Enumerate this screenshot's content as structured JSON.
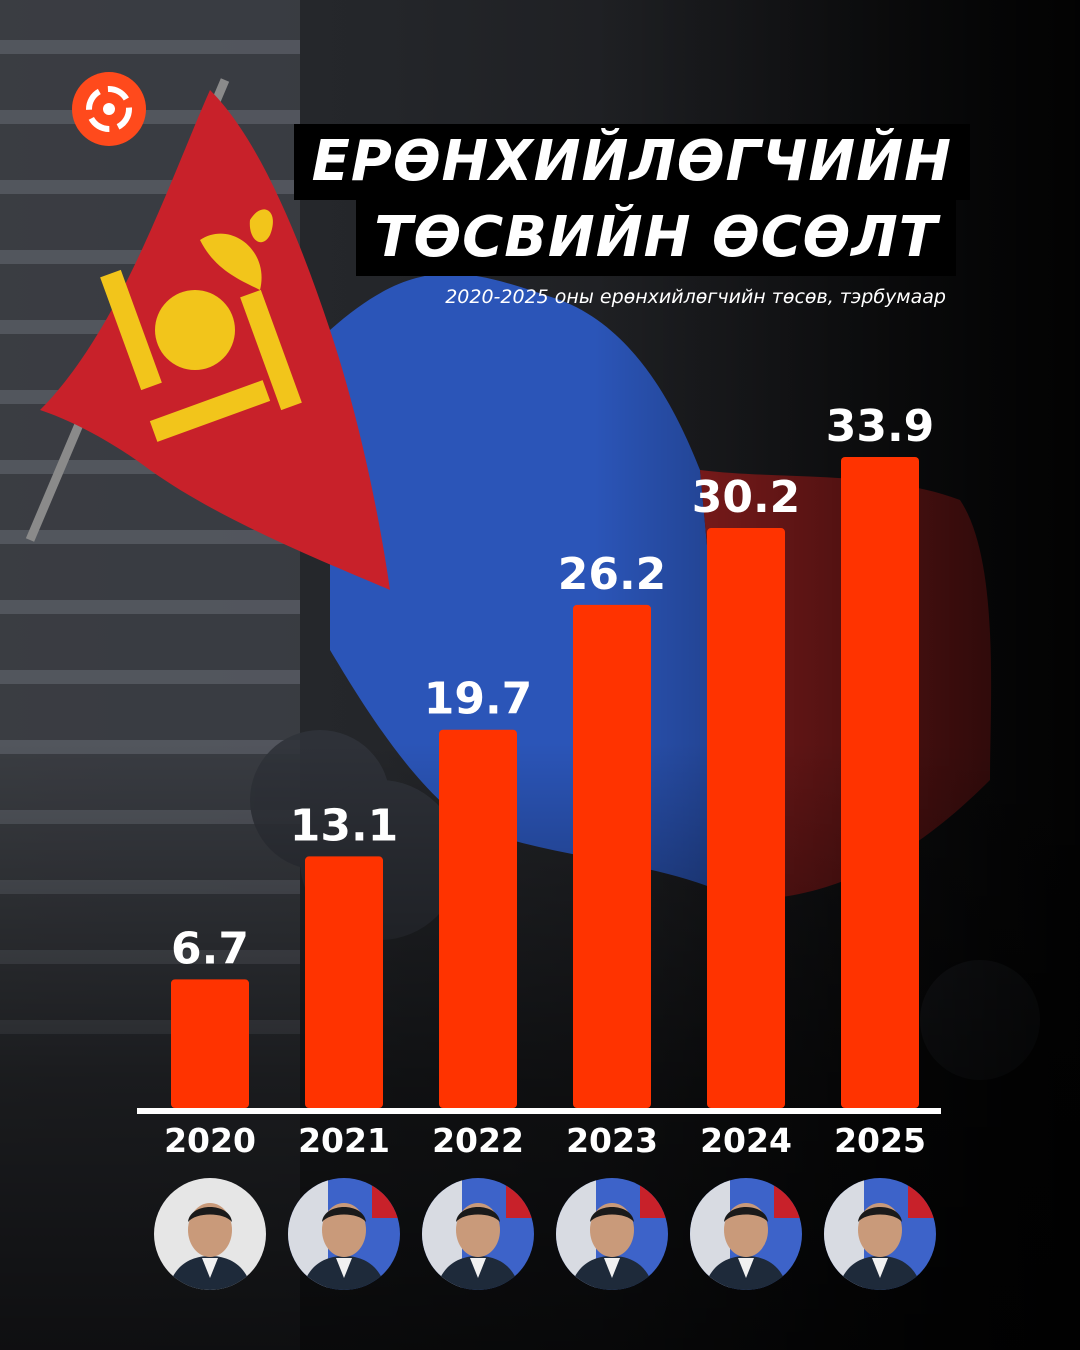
{
  "title": {
    "line1": "ЕРӨНХИЙЛӨГЧИЙН",
    "line2": "ТӨСВИЙН ӨСӨЛТ"
  },
  "subtitle": "2020-2025 оны ерөнхийлөгчийн төсөв, тэрбумаар",
  "colors": {
    "bar": "#ff3300",
    "brand": "#ff4a1c",
    "baseline": "#ffffff"
  },
  "chart_data": {
    "type": "bar",
    "categories": [
      "2020",
      "2021",
      "2022",
      "2023",
      "2024",
      "2025"
    ],
    "values": [
      6.7,
      13.1,
      19.7,
      26.2,
      30.2,
      33.9
    ],
    "title": "ЕРӨНХИЙЛӨГЧИЙН ТӨСВИЙН ӨСӨЛТ",
    "subtitle": "2020-2025 оны ерөнхийлөгчийн төсөв, тэрбумаар",
    "ylim": [
      0,
      33.9
    ],
    "grid": false,
    "data_labels": true
  },
  "portraits": [
    {
      "year": "2020",
      "icon": "president-portrait-icon"
    },
    {
      "year": "2021",
      "icon": "president-portrait-icon"
    },
    {
      "year": "2022",
      "icon": "president-portrait-icon"
    },
    {
      "year": "2023",
      "icon": "president-portrait-icon"
    },
    {
      "year": "2024",
      "icon": "president-portrait-icon"
    },
    {
      "year": "2025",
      "icon": "president-portrait-icon"
    }
  ],
  "logo": {
    "icon": "brand-logo-icon"
  }
}
